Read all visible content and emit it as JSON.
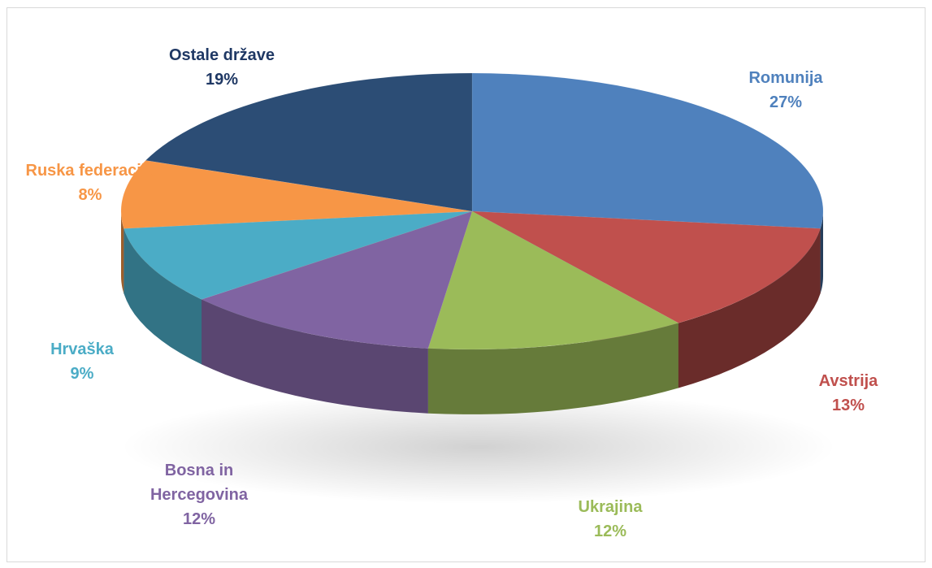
{
  "chart_data": {
    "type": "pie",
    "title": "",
    "categories": [
      "Romunija",
      "Avstrija",
      "Ukrajina",
      "Bosna in Hercegovina",
      "Hrvaška",
      "Ruska federacija",
      "Ostale države"
    ],
    "values": [
      27,
      13,
      12,
      12,
      9,
      8,
      19
    ],
    "value_labels": [
      "27%",
      "13%",
      "12%",
      "12%",
      "9%",
      "8%",
      "19%"
    ],
    "colors": [
      "#4f81bd",
      "#c0504d",
      "#9bbb59",
      "#8064a2",
      "#4bacc6",
      "#f79646",
      "#2c4d75"
    ],
    "label_lines": [
      [
        "Romunija"
      ],
      [
        "Avstrija"
      ],
      [
        "Ukrajina"
      ],
      [
        "Bosna in",
        "Hercegovina"
      ],
      [
        "Hrvaška"
      ],
      [
        "Ruska federacija"
      ],
      [
        "Ostale države"
      ]
    ],
    "style": "3d-exploded-perspective",
    "legend": "none"
  }
}
